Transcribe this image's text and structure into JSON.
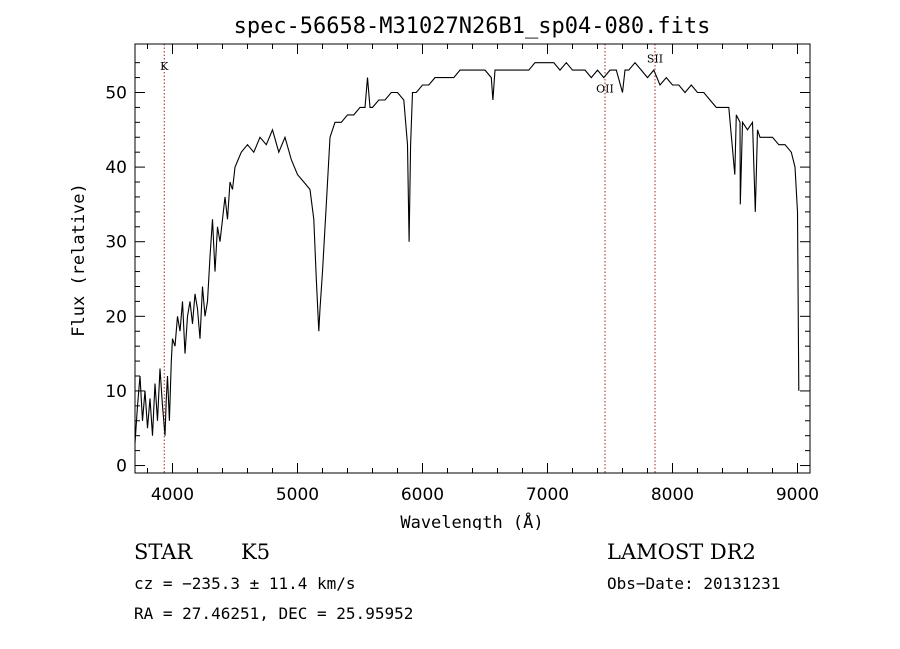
{
  "chart_data": {
    "type": "line",
    "title": "spec-56658-M31027N26B1_sp04-080.fits",
    "xlabel": "Wavelength (Å)",
    "ylabel": "Flux (relative)",
    "xlim": [
      3700,
      9100
    ],
    "ylim": [
      -1,
      56.5
    ],
    "x_ticks": [
      4000,
      5000,
      6000,
      7000,
      8000,
      9000
    ],
    "y_ticks": [
      0,
      10,
      20,
      30,
      40,
      50
    ],
    "grid": false,
    "series": [
      {
        "color": "#000000",
        "points": [
          [
            3700,
            3
          ],
          [
            3720,
            8
          ],
          [
            3740,
            12
          ],
          [
            3760,
            6
          ],
          [
            3780,
            10
          ],
          [
            3800,
            5
          ],
          [
            3820,
            9
          ],
          [
            3840,
            4
          ],
          [
            3860,
            11
          ],
          [
            3880,
            6
          ],
          [
            3900,
            13
          ],
          [
            3920,
            8
          ],
          [
            3940,
            4
          ],
          [
            3950,
            9
          ],
          [
            3960,
            12
          ],
          [
            3975,
            6
          ],
          [
            3990,
            14
          ],
          [
            4000,
            17
          ],
          [
            4020,
            16
          ],
          [
            4040,
            20
          ],
          [
            4060,
            18
          ],
          [
            4080,
            22
          ],
          [
            4100,
            15
          ],
          [
            4120,
            20
          ],
          [
            4140,
            22
          ],
          [
            4160,
            19
          ],
          [
            4180,
            23
          ],
          [
            4200,
            21
          ],
          [
            4220,
            17
          ],
          [
            4240,
            24
          ],
          [
            4260,
            20
          ],
          [
            4280,
            22
          ],
          [
            4300,
            28
          ],
          [
            4320,
            33
          ],
          [
            4340,
            26
          ],
          [
            4360,
            32
          ],
          [
            4380,
            30
          ],
          [
            4400,
            33
          ],
          [
            4420,
            36
          ],
          [
            4440,
            33
          ],
          [
            4460,
            38
          ],
          [
            4480,
            37
          ],
          [
            4500,
            40
          ],
          [
            4550,
            42
          ],
          [
            4600,
            43
          ],
          [
            4650,
            42
          ],
          [
            4700,
            44
          ],
          [
            4750,
            43
          ],
          [
            4800,
            45
          ],
          [
            4850,
            42
          ],
          [
            4900,
            44
          ],
          [
            4950,
            41
          ],
          [
            5000,
            39
          ],
          [
            5050,
            38
          ],
          [
            5100,
            37
          ],
          [
            5130,
            33
          ],
          [
            5150,
            25
          ],
          [
            5170,
            18
          ],
          [
            5180,
            21
          ],
          [
            5200,
            26
          ],
          [
            5230,
            35
          ],
          [
            5260,
            44
          ],
          [
            5300,
            46
          ],
          [
            5350,
            46
          ],
          [
            5400,
            47
          ],
          [
            5450,
            47
          ],
          [
            5500,
            48
          ],
          [
            5540,
            48
          ],
          [
            5560,
            52
          ],
          [
            5580,
            48
          ],
          [
            5600,
            48
          ],
          [
            5650,
            49
          ],
          [
            5700,
            49
          ],
          [
            5750,
            50
          ],
          [
            5800,
            50
          ],
          [
            5850,
            49
          ],
          [
            5880,
            43
          ],
          [
            5893,
            30
          ],
          [
            5905,
            43
          ],
          [
            5920,
            50
          ],
          [
            5950,
            50
          ],
          [
            6000,
            51
          ],
          [
            6050,
            51
          ],
          [
            6100,
            52
          ],
          [
            6150,
            52
          ],
          [
            6200,
            52
          ],
          [
            6250,
            52
          ],
          [
            6300,
            53
          ],
          [
            6350,
            53
          ],
          [
            6400,
            53
          ],
          [
            6450,
            53
          ],
          [
            6500,
            53
          ],
          [
            6550,
            52
          ],
          [
            6563,
            49
          ],
          [
            6580,
            53
          ],
          [
            6600,
            53
          ],
          [
            6650,
            53
          ],
          [
            6700,
            53
          ],
          [
            6750,
            53
          ],
          [
            6800,
            53
          ],
          [
            6850,
            53
          ],
          [
            6900,
            54
          ],
          [
            6950,
            54
          ],
          [
            7000,
            54
          ],
          [
            7050,
            54
          ],
          [
            7100,
            53
          ],
          [
            7150,
            54
          ],
          [
            7200,
            53
          ],
          [
            7250,
            53
          ],
          [
            7300,
            53
          ],
          [
            7350,
            52
          ],
          [
            7400,
            53
          ],
          [
            7450,
            52
          ],
          [
            7500,
            53
          ],
          [
            7550,
            53
          ],
          [
            7600,
            50
          ],
          [
            7620,
            53
          ],
          [
            7650,
            53
          ],
          [
            7700,
            54
          ],
          [
            7750,
            53
          ],
          [
            7800,
            52
          ],
          [
            7850,
            53
          ],
          [
            7900,
            51
          ],
          [
            7950,
            52
          ],
          [
            8000,
            51
          ],
          [
            8050,
            51
          ],
          [
            8100,
            50
          ],
          [
            8150,
            51
          ],
          [
            8200,
            50
          ],
          [
            8250,
            50
          ],
          [
            8300,
            49
          ],
          [
            8350,
            48
          ],
          [
            8400,
            48
          ],
          [
            8450,
            48
          ],
          [
            8498,
            39
          ],
          [
            8510,
            47
          ],
          [
            8540,
            46
          ],
          [
            8542,
            35
          ],
          [
            8560,
            46
          ],
          [
            8600,
            45
          ],
          [
            8640,
            46
          ],
          [
            8662,
            34
          ],
          [
            8680,
            45
          ],
          [
            8700,
            44
          ],
          [
            8750,
            44
          ],
          [
            8800,
            44
          ],
          [
            8850,
            43
          ],
          [
            8900,
            43
          ],
          [
            8950,
            42
          ],
          [
            8980,
            40
          ],
          [
            9000,
            34
          ],
          [
            9010,
            10
          ]
        ]
      }
    ],
    "annotations": [
      {
        "label": "K",
        "x": 3934,
        "label_y": 53.0
      },
      {
        "label": "OII",
        "x": 7460,
        "label_y": 50.0
      },
      {
        "label": "SII",
        "x": 7860,
        "label_y": 54.0
      }
    ]
  },
  "info": {
    "object_type": "STAR",
    "subclass": "K5",
    "survey": "LAMOST DR2",
    "cz": "cz = −235.3 ± 11.4 km/s",
    "obs_date": "Obs−Date: 20131231",
    "coords": "RA =  27.46251, DEC =  25.95952"
  },
  "colors": {
    "spectrum": "#000000",
    "line_marker": "#aa2222"
  }
}
